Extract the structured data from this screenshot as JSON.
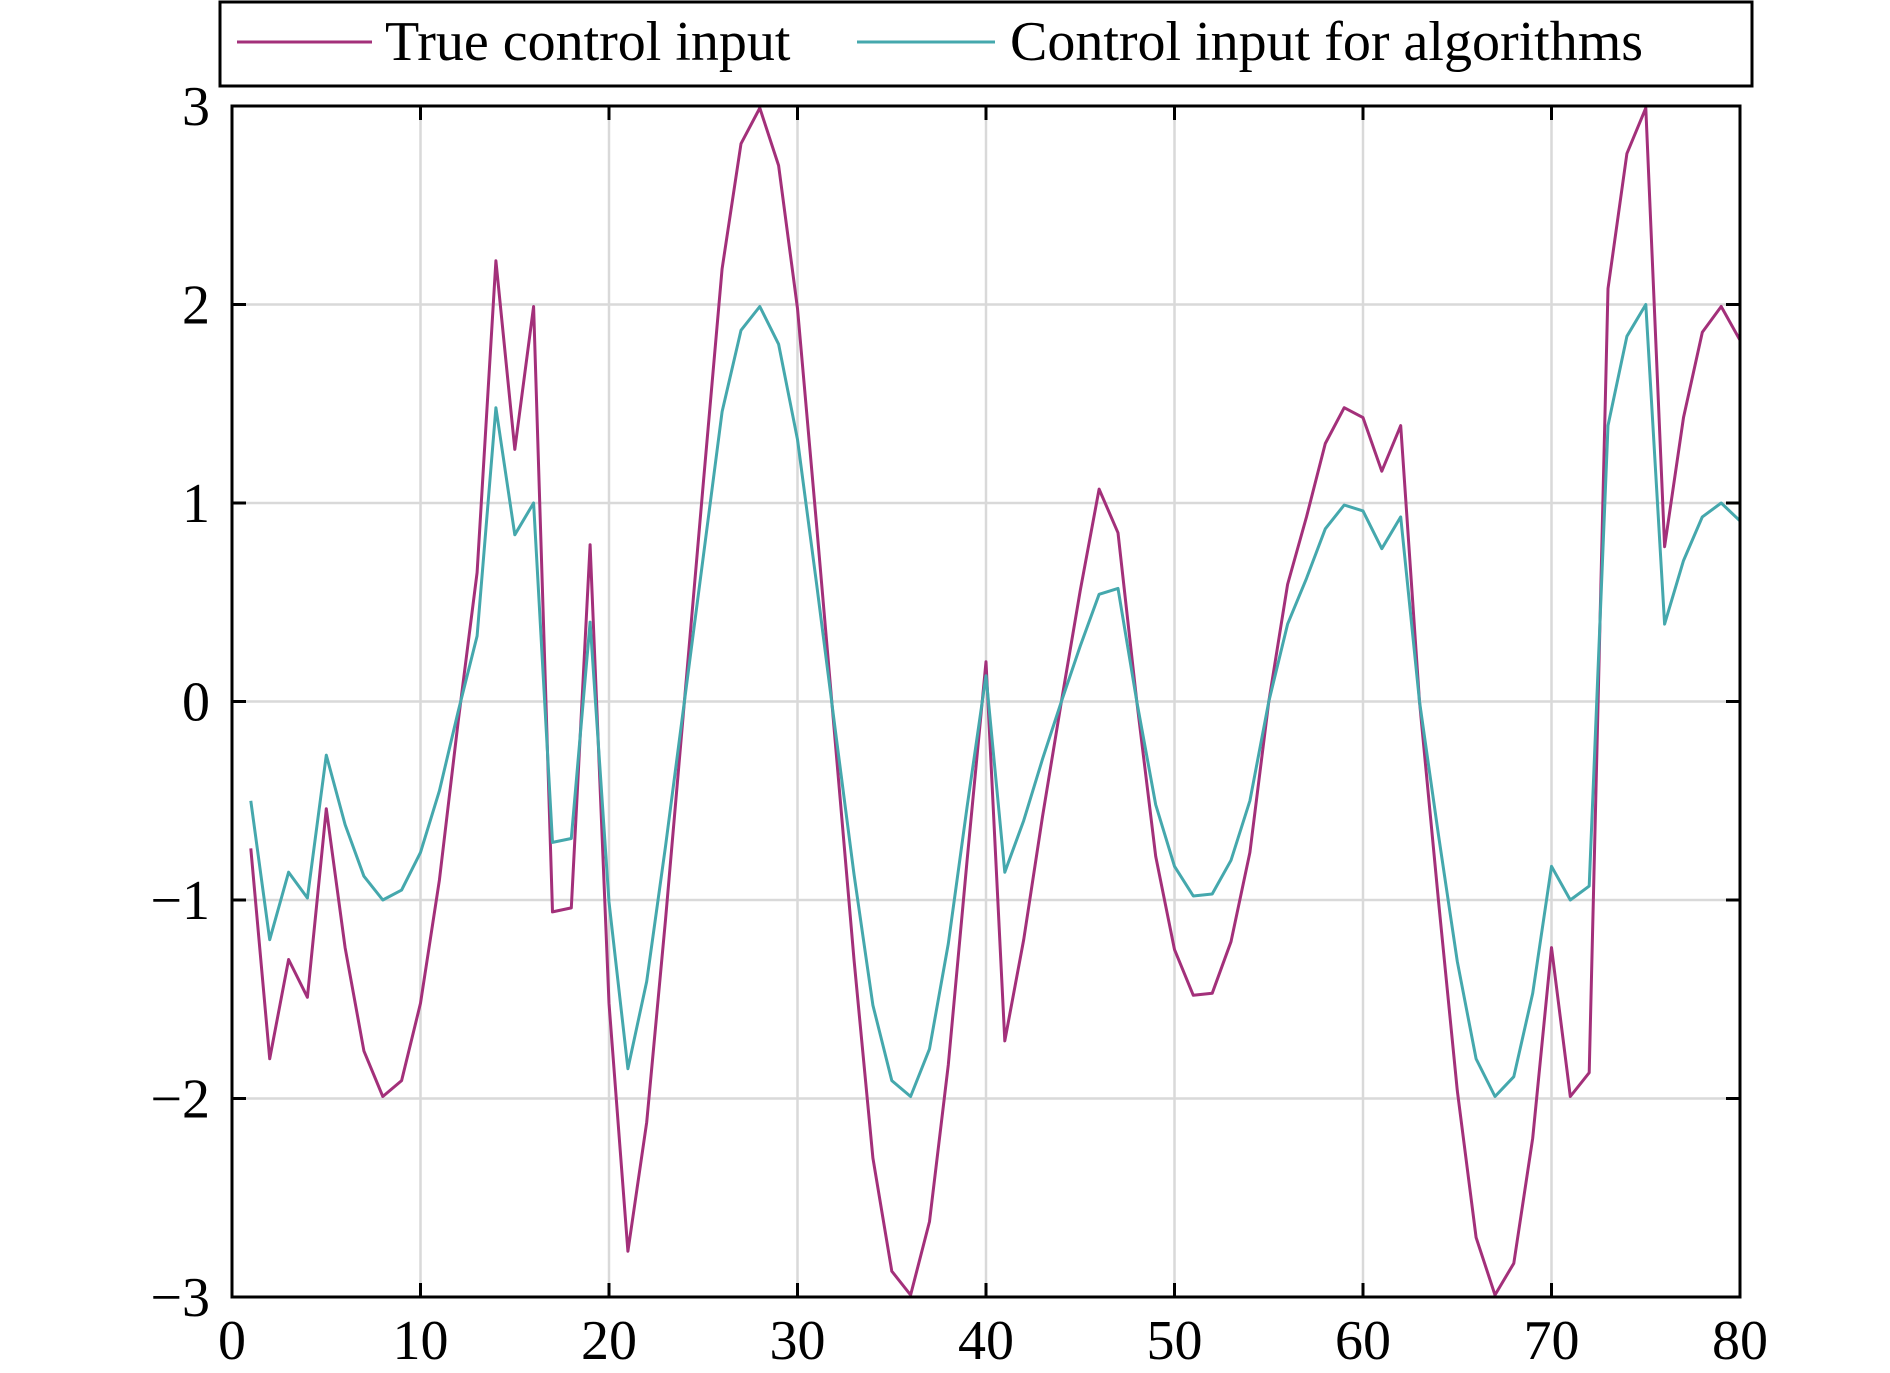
{
  "chart_data": {
    "type": "line",
    "title": "",
    "xlabel": "",
    "ylabel": "",
    "xlim": [
      0,
      80
    ],
    "ylim": [
      -3,
      3
    ],
    "xticks": [
      0,
      10,
      20,
      30,
      40,
      50,
      60,
      70,
      80
    ],
    "xtick_labels": [
      "0",
      "10",
      "20",
      "30",
      "40",
      "50",
      "60",
      "70",
      "80"
    ],
    "yticks": [
      -3,
      -2,
      -1,
      0,
      1,
      2,
      3
    ],
    "ytick_labels": [
      "−3",
      "−2",
      "−1",
      "0",
      "1",
      "2",
      "3"
    ],
    "grid": true,
    "legend_position": "top",
    "x": [
      1,
      2,
      3,
      4,
      5,
      6,
      7,
      8,
      9,
      10,
      11,
      12,
      13,
      14,
      15,
      16,
      17,
      18,
      19,
      20,
      21,
      22,
      23,
      24,
      25,
      26,
      27,
      28,
      29,
      30,
      31,
      32,
      33,
      34,
      35,
      36,
      37,
      38,
      39,
      40,
      41,
      42,
      43,
      44,
      45,
      46,
      47,
      48,
      49,
      50,
      51,
      52,
      53,
      54,
      55,
      56,
      57,
      58,
      59,
      60,
      61,
      62,
      63,
      64,
      65,
      66,
      67,
      68,
      69,
      70,
      71,
      72,
      73,
      74,
      75,
      76,
      77,
      78,
      79,
      80
    ],
    "series": [
      {
        "name": "True control input",
        "color": "#a3307a",
        "values": [
          -0.74,
          -1.8,
          -1.3,
          -1.49,
          -0.54,
          -1.24,
          -1.76,
          -1.99,
          -1.91,
          -1.52,
          -0.9,
          -0.1,
          0.65,
          2.22,
          1.27,
          1.99,
          -1.06,
          -1.04,
          0.79,
          -1.52,
          -2.77,
          -2.12,
          -1.1,
          0.0,
          1.1,
          2.18,
          2.81,
          2.99,
          2.7,
          1.98,
          0.9,
          -0.2,
          -1.3,
          -2.3,
          -2.87,
          -2.99,
          -2.62,
          -1.83,
          -0.8,
          0.2,
          -1.71,
          -1.2,
          -0.58,
          0.0,
          0.56,
          1.07,
          0.85,
          0.0,
          -0.78,
          -1.25,
          -1.48,
          -1.47,
          -1.21,
          -0.76,
          0.0,
          0.59,
          0.93,
          1.3,
          1.48,
          1.43,
          1.16,
          1.39,
          0.0,
          -1.0,
          -1.96,
          -2.7,
          -2.99,
          -2.83,
          -2.2,
          -1.24,
          -1.99,
          -1.87,
          2.08,
          2.76,
          2.99,
          0.78,
          1.43,
          1.86,
          1.99,
          1.82
        ]
      },
      {
        "name": "Control input for algorithms",
        "color": "#45a8ad",
        "values": [
          -0.5,
          -1.2,
          -0.86,
          -0.99,
          -0.27,
          -0.62,
          -0.88,
          -1.0,
          -0.95,
          -0.76,
          -0.45,
          -0.05,
          0.33,
          1.48,
          0.84,
          1.0,
          -0.71,
          -0.69,
          0.4,
          -1.01,
          -1.85,
          -1.41,
          -0.73,
          0.0,
          0.73,
          1.46,
          1.87,
          1.99,
          1.8,
          1.32,
          0.6,
          -0.14,
          -0.87,
          -1.53,
          -1.91,
          -1.99,
          -1.75,
          -1.22,
          -0.53,
          0.13,
          -0.86,
          -0.6,
          -0.29,
          0.0,
          0.28,
          0.54,
          0.57,
          0.0,
          -0.52,
          -0.83,
          -0.98,
          -0.97,
          -0.8,
          -0.5,
          0.0,
          0.39,
          0.62,
          0.87,
          0.99,
          0.96,
          0.77,
          0.93,
          0.0,
          -0.67,
          -1.31,
          -1.8,
          -1.99,
          -1.89,
          -1.47,
          -0.83,
          -1.0,
          -0.93,
          1.39,
          1.84,
          2.0,
          0.39,
          0.71,
          0.93,
          1.0,
          0.91
        ]
      }
    ]
  }
}
